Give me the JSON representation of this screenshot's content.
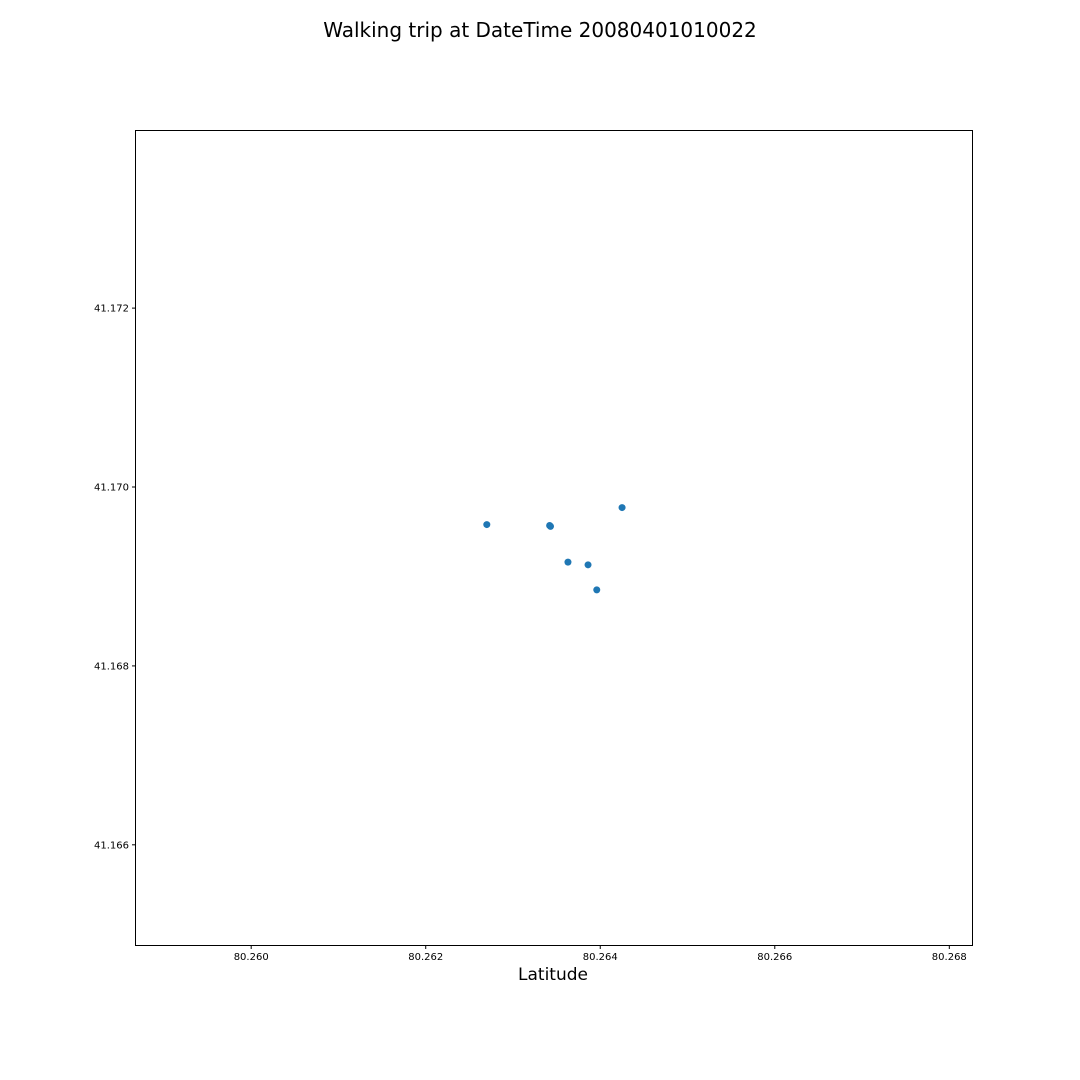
{
  "chart_data": {
    "type": "scatter",
    "title": "Walking trip at DateTime 20080401010022",
    "xlabel": "Latitude",
    "ylabel": "",
    "xlim": [
      80.25868,
      80.26826
    ],
    "ylim": [
      41.16488,
      41.17398
    ],
    "xticks": [
      80.26,
      80.262,
      80.264,
      80.266,
      80.268
    ],
    "xtick_labels": [
      "80.260",
      "80.262",
      "80.264",
      "80.266",
      "80.268"
    ],
    "yticks": [
      41.166,
      41.168,
      41.17,
      41.172
    ],
    "ytick_labels": [
      "41.166",
      "41.168",
      "41.170",
      "41.172"
    ],
    "grid": false,
    "marker_color": "#1f77b4",
    "series": [
      {
        "x": [
          80.2627,
          80.26342,
          80.26343,
          80.26363,
          80.26386,
          80.26396,
          80.26425
        ],
        "y": [
          41.16958,
          41.16957,
          41.16956,
          41.16916,
          41.16913,
          41.16885,
          41.16977
        ]
      }
    ]
  }
}
